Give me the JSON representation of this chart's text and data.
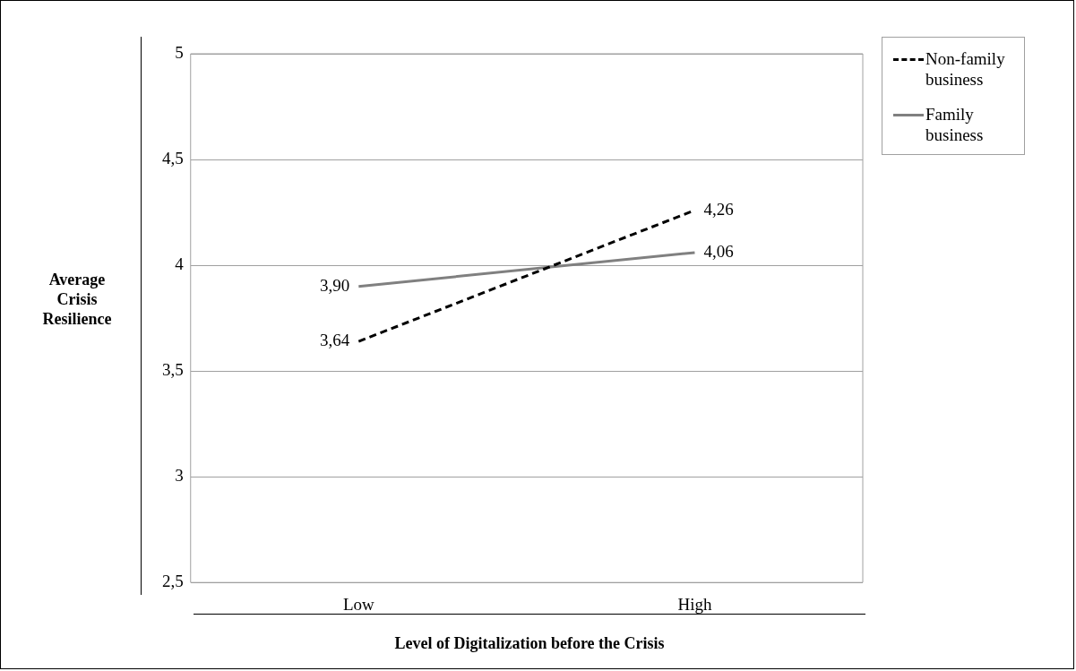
{
  "chart_data": {
    "type": "line",
    "xlabel": "Level of Digitalization before the Crisis",
    "ylabel": "Average Crisis Resilience",
    "categories": [
      "Low",
      "High"
    ],
    "series": [
      {
        "name": "Non-family business",
        "color": "#000000",
        "line_style": "dashed",
        "values": [
          3.64,
          4.26
        ],
        "value_labels": [
          "3,64",
          "4,26"
        ]
      },
      {
        "name": "Family business",
        "color": "#808080",
        "line_style": "solid",
        "values": [
          3.9,
          4.06
        ],
        "value_labels": [
          "3,90",
          "4,06"
        ]
      }
    ],
    "ylim": [
      2.5,
      5
    ],
    "yticks": [
      {
        "value": 2.5,
        "label": "2,5"
      },
      3,
      {
        "value": 3.5,
        "label": "3,5"
      },
      4,
      {
        "value": 4.5,
        "label": "4,5"
      },
      5
    ],
    "grid": "y",
    "legend": "right",
    "marker": "none"
  }
}
